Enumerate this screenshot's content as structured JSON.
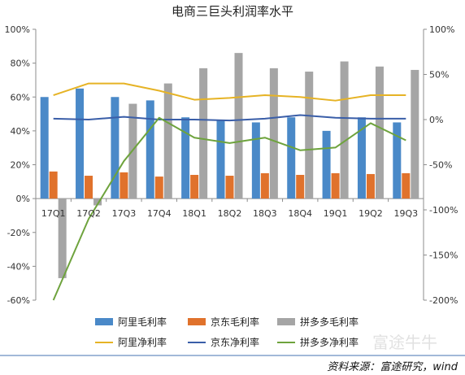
{
  "chart_data": {
    "type": "bar",
    "title": "电商三巨头利润率水平",
    "categories": [
      "17Q1",
      "17Q2",
      "17Q3",
      "17Q4",
      "18Q1",
      "18Q2",
      "18Q3",
      "18Q4",
      "19Q1",
      "19Q2",
      "19Q3"
    ],
    "left_axis": {
      "ylim": [
        -60,
        100
      ],
      "ticks": [
        "-60%",
        "-40%",
        "-20%",
        "0%",
        "20%",
        "40%",
        "60%",
        "80%",
        "100%"
      ],
      "tick_values": [
        -60,
        -40,
        -20,
        0,
        20,
        40,
        60,
        80,
        100
      ]
    },
    "right_axis": {
      "ylim": [
        -200,
        100
      ],
      "ticks": [
        "-200%",
        "-150%",
        "-100%",
        "-50%",
        "0%",
        "50%",
        "100%"
      ],
      "tick_values": [
        -200,
        -150,
        -100,
        -50,
        0,
        50,
        100
      ]
    },
    "bar_series": [
      {
        "name": "阿里毛利率",
        "color": "#4a89c8",
        "axis": "left",
        "values": [
          60,
          65,
          60,
          58,
          48,
          46,
          45,
          48,
          40,
          48,
          45
        ]
      },
      {
        "name": "京东毛利率",
        "color": "#e0722c",
        "axis": "left",
        "values": [
          16,
          13.5,
          15.5,
          13,
          14,
          13.5,
          15,
          14,
          15,
          14.5,
          15
        ]
      },
      {
        "name": "拼多多毛利率",
        "color": "#a5a5a5",
        "axis": "left",
        "values": [
          -47,
          -4,
          56,
          68,
          77,
          86,
          77,
          75,
          81,
          78,
          76
        ]
      }
    ],
    "line_series": [
      {
        "name": "阿里净利率",
        "color": "#e6b325",
        "axis": "right",
        "values": [
          27,
          40,
          40,
          32,
          22,
          24,
          27,
          25,
          21,
          27,
          27
        ]
      },
      {
        "name": "京东净利率",
        "color": "#3a5ea8",
        "axis": "right",
        "values": [
          1,
          0,
          3,
          0,
          0,
          -1,
          1,
          5,
          2,
          1,
          1
        ]
      },
      {
        "name": "拼多多净利率",
        "color": "#6ea33d",
        "axis": "right",
        "values": [
          -200,
          -110,
          -46,
          2,
          -20,
          -26,
          -20,
          -34,
          -31,
          -4,
          -23
        ]
      }
    ],
    "legend_position": "bottom",
    "grid": false
  },
  "source_text": "资料来源：富途研究，wind",
  "watermark_text": "富途牛牛"
}
